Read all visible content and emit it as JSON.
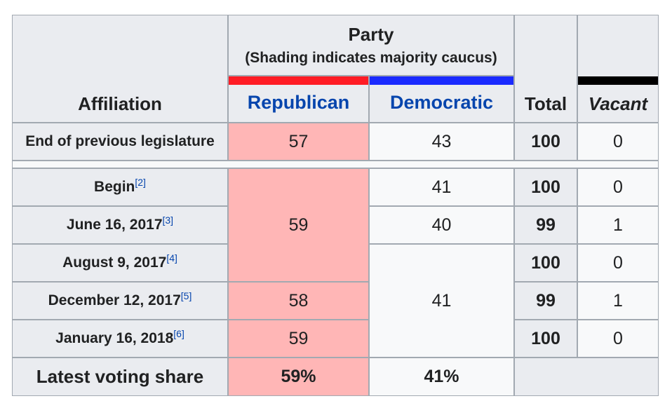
{
  "header": {
    "affiliation": "Affiliation",
    "party": "Party",
    "party_note": "(Shading indicates majority caucus)",
    "republican": "Republican",
    "democratic": "Democratic",
    "total": "Total",
    "vacant": "Vacant"
  },
  "colors": {
    "republican": "#ff1c25",
    "democratic": "#1a2aff",
    "vacant": "#000000",
    "majority_shading": "#ffb6b6"
  },
  "previous": {
    "label": "End of previous legislature",
    "republican": "57",
    "democratic": "43",
    "total": "100",
    "vacant": "0"
  },
  "rows": [
    {
      "label": "Begin",
      "ref": "[2]",
      "democratic": "41",
      "total": "100",
      "vacant": "0"
    },
    {
      "label": "June 16, 2017",
      "ref": "[3]",
      "democratic": "40",
      "total": "99",
      "vacant": "1"
    },
    {
      "label": "August 9, 2017",
      "ref": "[4]",
      "total": "100",
      "vacant": "0"
    },
    {
      "label": "December 12, 2017",
      "ref": "[5]",
      "republican": "58",
      "total": "99",
      "vacant": "1"
    },
    {
      "label": "January 16, 2018",
      "ref": "[6]",
      "republican": "59",
      "total": "100",
      "vacant": "0"
    }
  ],
  "merged": {
    "republican_top": "59",
    "democratic_bottom": "41"
  },
  "latest": {
    "label": "Latest voting share",
    "republican": "59%",
    "democratic": "41%"
  }
}
